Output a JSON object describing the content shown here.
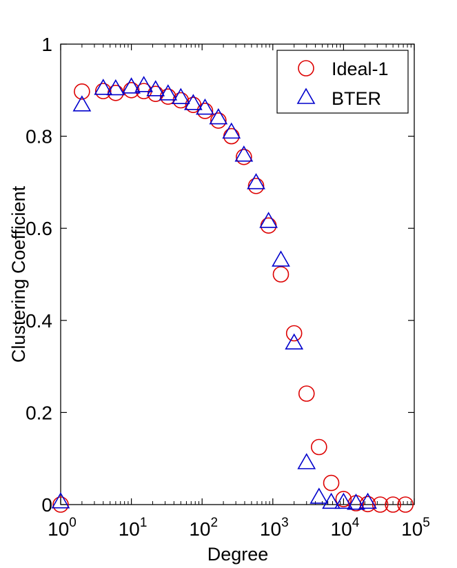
{
  "chart_data": {
    "type": "scatter",
    "xlabel": "Degree",
    "ylabel": "Clustering Coefficient",
    "xscale": "log",
    "xlim": [
      1,
      100000
    ],
    "ylim": [
      0,
      1
    ],
    "x_ticks": [
      1,
      10,
      100,
      1000,
      10000,
      100000
    ],
    "x_tick_base": "10",
    "x_tick_exponents": [
      "0",
      "1",
      "2",
      "3",
      "4",
      "5"
    ],
    "y_ticks": [
      0,
      0.2,
      0.4,
      0.6,
      0.8,
      1
    ],
    "y_tick_labels": [
      "0",
      "0.2",
      "0.4",
      "0.6",
      "0.8",
      "1"
    ],
    "legend_position": "top-right",
    "grid": false,
    "series": [
      {
        "name": "Ideal-1",
        "marker": "circle",
        "color": "#dd0000",
        "points": [
          [
            1,
            0.0
          ],
          [
            2,
            0.897
          ],
          [
            4,
            0.898
          ],
          [
            6,
            0.894
          ],
          [
            10,
            0.9
          ],
          [
            15,
            0.898
          ],
          [
            22,
            0.892
          ],
          [
            33,
            0.886
          ],
          [
            50,
            0.878
          ],
          [
            75,
            0.868
          ],
          [
            110,
            0.855
          ],
          [
            170,
            0.834
          ],
          [
            260,
            0.8
          ],
          [
            390,
            0.755
          ],
          [
            580,
            0.692
          ],
          [
            870,
            0.606
          ],
          [
            1300,
            0.5
          ],
          [
            2000,
            0.372
          ],
          [
            3000,
            0.241
          ],
          [
            4500,
            0.125
          ],
          [
            6700,
            0.047
          ],
          [
            10000,
            0.012
          ],
          [
            15000,
            0.003
          ],
          [
            22000,
            0.001
          ],
          [
            33000,
            0.0
          ],
          [
            50000,
            0.0
          ],
          [
            75000,
            0.0
          ]
        ]
      },
      {
        "name": "BTER",
        "marker": "triangle",
        "color": "#0000cc",
        "points": [
          [
            1,
            0.005
          ],
          [
            2,
            0.867
          ],
          [
            4,
            0.903
          ],
          [
            6,
            0.902
          ],
          [
            10,
            0.906
          ],
          [
            15,
            0.909
          ],
          [
            22,
            0.9
          ],
          [
            33,
            0.891
          ],
          [
            50,
            0.883
          ],
          [
            75,
            0.87
          ],
          [
            110,
            0.86
          ],
          [
            170,
            0.839
          ],
          [
            260,
            0.808
          ],
          [
            390,
            0.758
          ],
          [
            580,
            0.698
          ],
          [
            870,
            0.614
          ],
          [
            1300,
            0.53
          ],
          [
            2000,
            0.35
          ],
          [
            3000,
            0.09
          ],
          [
            4500,
            0.015
          ],
          [
            6700,
            0.004
          ],
          [
            10000,
            0.004
          ],
          [
            15000,
            0.002
          ],
          [
            22000,
            0.004
          ]
        ]
      }
    ]
  }
}
